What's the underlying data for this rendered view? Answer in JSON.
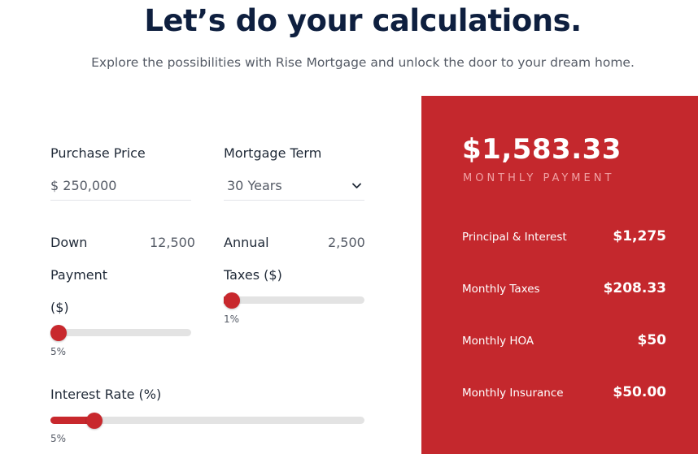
{
  "header": {
    "title": "Let’s do your calculations.",
    "subtitle": "Explore the possibilities with Rise Mortgage and unlock the door to your dream home."
  },
  "form": {
    "purchase_price": {
      "label": "Purchase Price",
      "value": "$ 250,000"
    },
    "mortgage_term": {
      "label": "Mortgage Term",
      "value": "30 Years",
      "icon": "chevron-down-icon"
    },
    "down_payment": {
      "label_line1": "Down",
      "label_line2": "Payment",
      "label_line3": "($)",
      "value": "12,500",
      "percent_label": "5%",
      "slider_fraction": 0.05
    },
    "annual_taxes": {
      "label_line1": "Annual",
      "label_line2": "Taxes ($)",
      "value": "2,500",
      "percent_label": "1%",
      "slider_fraction": 0.01
    },
    "interest_rate": {
      "label": "Interest Rate (%)",
      "percent_label": "5%",
      "slider_fraction": 0.14
    }
  },
  "summary": {
    "monthly_payment": "$1,583.33",
    "monthly_payment_caption": "MONTHLY PAYMENT",
    "rows": [
      {
        "label": "Principal & Interest",
        "value": "$1,275"
      },
      {
        "label": "Monthly Taxes",
        "value": "$208.33"
      },
      {
        "label": "Monthly HOA",
        "value": "$50"
      },
      {
        "label": "Monthly Insurance",
        "value": "$50.00"
      }
    ]
  },
  "colors": {
    "accent": "#c4282d",
    "title": "#0e1f3f",
    "track": "#e3e3e3"
  }
}
